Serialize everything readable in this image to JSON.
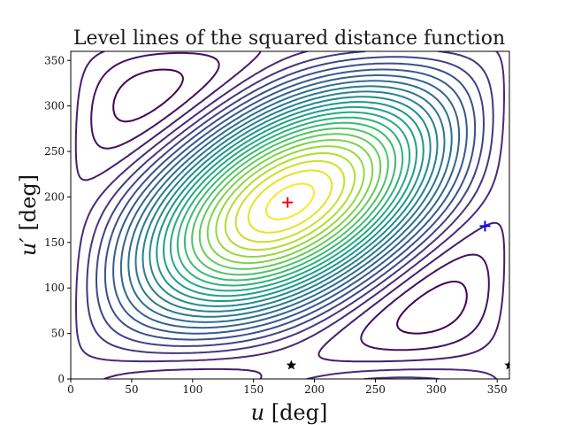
{
  "chart_data": {
    "type": "contour",
    "title": "Level lines of the squared distance function",
    "xlabel_var": "u",
    "xlabel_unit": " [deg]",
    "ylabel_var": "u′",
    "ylabel_unit": " [deg]",
    "xlim": [
      0,
      360
    ],
    "ylim": [
      0,
      360
    ],
    "xticks": [
      0,
      50,
      100,
      150,
      200,
      250,
      300,
      350
    ],
    "yticks": [
      0,
      50,
      100,
      150,
      200,
      250,
      300,
      350
    ],
    "colormap": "viridis",
    "grid": false,
    "center": {
      "u": 180,
      "v": 195
    },
    "levels": 26,
    "markers": [
      {
        "name": "red-plus",
        "symbol": "+",
        "color": "#ff0000",
        "u": 178,
        "v": 194
      },
      {
        "name": "blue-plus",
        "symbol": "+",
        "color": "#0000ff",
        "u": 340,
        "v": 168
      },
      {
        "name": "star-1",
        "symbol": "star",
        "color": "#000000",
        "u": 181,
        "v": 15
      },
      {
        "name": "star-2",
        "symbol": "star",
        "color": "#000000",
        "u": 360,
        "v": 15
      }
    ]
  }
}
